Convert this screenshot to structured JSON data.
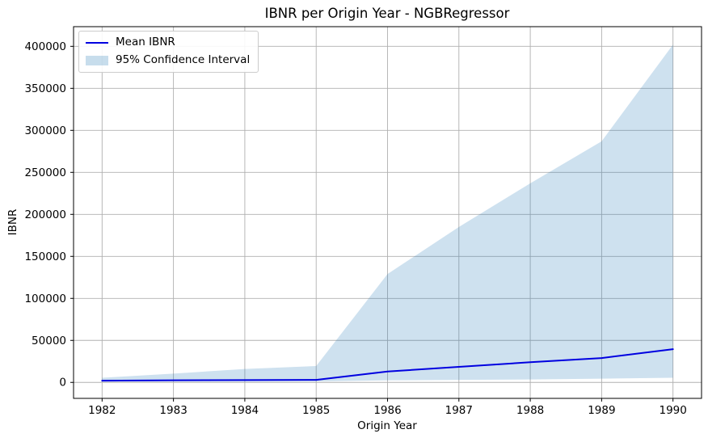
{
  "window": {
    "title": "IBNR per Origin Year - NGBRegressor"
  },
  "chart_data": {
    "type": "line",
    "title": "IBNR per Origin Year - NGBRegressor",
    "xlabel": "Origin Year",
    "ylabel": "IBNR",
    "x": [
      1982,
      1983,
      1984,
      1985,
      1986,
      1987,
      1988,
      1989,
      1990
    ],
    "series": [
      {
        "name": "Mean IBNR",
        "kind": "line",
        "color": "#0000e0",
        "linewidth": 2,
        "values": [
          2000,
          2500,
          2800,
          3000,
          13000,
          18500,
          24000,
          29000,
          39500
        ]
      },
      {
        "name": "95% Confidence Interval",
        "kind": "band",
        "color": "#1f77b4",
        "opacity": 0.22,
        "upper": [
          5500,
          10500,
          16000,
          19500,
          129000,
          185000,
          237000,
          287000,
          402000
        ],
        "lower": [
          800,
          900,
          1000,
          1100,
          2500,
          3000,
          3500,
          4500,
          5500
        ]
      }
    ],
    "xticks": [
      1982,
      1983,
      1984,
      1985,
      1986,
      1987,
      1988,
      1989,
      1990
    ],
    "yticks": [
      0,
      50000,
      100000,
      150000,
      200000,
      250000,
      300000,
      350000,
      400000
    ],
    "xlim": [
      1981.6,
      1990.4
    ],
    "ylim": [
      -19000,
      423400
    ],
    "grid": true,
    "legend_position": "upper left",
    "colors": {
      "grid": "#b0b0b0",
      "spine": "#000000",
      "tick": "#000000",
      "background": "#ffffff"
    }
  },
  "legend": {
    "items": [
      {
        "label": "Mean IBNR"
      },
      {
        "label": "95% Confidence Interval"
      }
    ]
  }
}
